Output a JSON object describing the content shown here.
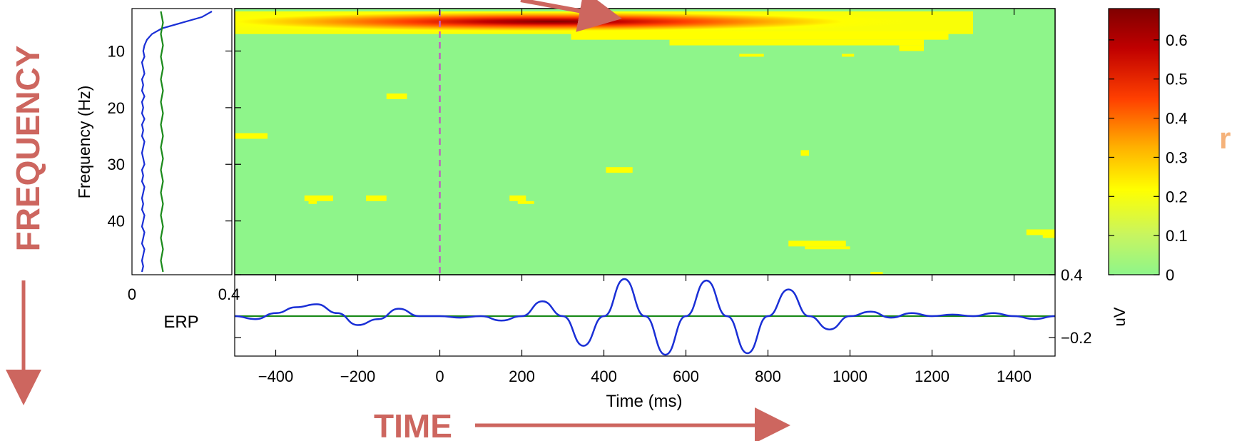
{
  "annotations": {
    "frequency": "FREQUENCY",
    "time": "TIME",
    "r": "r"
  },
  "colors": {
    "annotation": "#cd665f",
    "r_label": "#f5b27a",
    "baseline": "#8ef58a",
    "spectrum_line": "#1a2fd6",
    "erp_line": "#1a2fd6",
    "bootstrap_line": "#1a8a1a",
    "stim_marker": "#c060c0",
    "colormap": [
      "#8ef58a",
      "#c8f560",
      "#ffff00",
      "#ffb000",
      "#ff4000",
      "#c00000",
      "#800000"
    ]
  },
  "chart_data": [
    {
      "type": "heatmap",
      "name": "time-frequency",
      "ylabel": "Frequency (Hz)",
      "xlabel": "Time (ms)",
      "xlim": [
        -500,
        1500
      ],
      "ylim": [
        49.5,
        2.5
      ],
      "ytick_labels": [
        "10",
        "20",
        "30",
        "40"
      ],
      "ytick_values": [
        10,
        20,
        30,
        40
      ],
      "xtick_labels": [
        "-400",
        "-200",
        "0",
        "200",
        "400",
        "600",
        "800",
        "1000",
        "1200",
        "1400"
      ],
      "xtick_values": [
        -400,
        -200,
        0,
        200,
        400,
        600,
        800,
        1000,
        1200,
        1400
      ],
      "stimulus_onset_ms": 0,
      "main_band": {
        "freq_min": 3,
        "freq_max": 7,
        "time_start": -500,
        "time_end": 1300,
        "peak_time": 550,
        "peak_freq": 4.5,
        "peak_value": 0.68
      },
      "blobs": [
        {
          "t0": 320,
          "t1": 1240,
          "f0": 6.5,
          "f1": 8,
          "v": 0.15
        },
        {
          "t0": 560,
          "t1": 1180,
          "f0": 8,
          "f1": 9,
          "v": 0.12
        },
        {
          "t0": 1120,
          "t1": 1180,
          "f0": 9,
          "f1": 10,
          "v": 0.12
        },
        {
          "t0": 730,
          "t1": 790,
          "f0": 10.5,
          "f1": 11,
          "v": 0.12
        },
        {
          "t0": 980,
          "t1": 1010,
          "f0": 10.5,
          "f1": 11,
          "v": 0.12
        },
        {
          "t0": -130,
          "t1": -80,
          "f0": 17.5,
          "f1": 18.5,
          "v": 0.15
        },
        {
          "t0": -500,
          "t1": -420,
          "f0": 24.5,
          "f1": 25.5,
          "v": 0.15
        },
        {
          "t0": 405,
          "t1": 470,
          "f0": 30.5,
          "f1": 31.5,
          "v": 0.15
        },
        {
          "t0": 880,
          "t1": 900,
          "f0": 27.5,
          "f1": 28.5,
          "v": 0.15
        },
        {
          "t0": -330,
          "t1": -260,
          "f0": 35.5,
          "f1": 36.5,
          "v": 0.15
        },
        {
          "t0": -320,
          "t1": -300,
          "f0": 36.5,
          "f1": 37,
          "v": 0.15
        },
        {
          "t0": -180,
          "t1": -130,
          "f0": 35.5,
          "f1": 36.5,
          "v": 0.15
        },
        {
          "t0": 170,
          "t1": 210,
          "f0": 35.5,
          "f1": 36.5,
          "v": 0.15
        },
        {
          "t0": 190,
          "t1": 230,
          "f0": 36.5,
          "f1": 37,
          "v": 0.15
        },
        {
          "t0": 850,
          "t1": 990,
          "f0": 43.5,
          "f1": 44.5,
          "v": 0.15
        },
        {
          "t0": 890,
          "t1": 1000,
          "f0": 44.5,
          "f1": 45,
          "v": 0.12
        },
        {
          "t0": 1430,
          "t1": 1500,
          "f0": 41.5,
          "f1": 42.5,
          "v": 0.15
        },
        {
          "t0": 1470,
          "t1": 1500,
          "f0": 42.5,
          "f1": 43,
          "v": 0.12
        },
        {
          "t0": 1050,
          "t1": 1080,
          "f0": 49,
          "f1": 49.5,
          "v": 0.12
        }
      ]
    },
    {
      "type": "line",
      "name": "spectrum",
      "xlim": [
        0,
        0.4
      ],
      "xtick_labels": [
        "0",
        "0.4"
      ],
      "xtick_values": [
        0,
        0.4
      ],
      "series": [
        {
          "name": "",
          "x": [
            0.32,
            0.28,
            0.2,
            0.12,
            0.08,
            0.06,
            0.05,
            0.045,
            0.05,
            0.04,
            0.045,
            0.05,
            0.04,
            0.045,
            0.04,
            0.05,
            0.04,
            0.045,
            0.04,
            0.05,
            0.04,
            0.045,
            0.04,
            0.05,
            0.045,
            0.04,
            0.045,
            0.05,
            0.04,
            0.045,
            0.04,
            0.05,
            0.045,
            0.04,
            0.045,
            0.04,
            0.05,
            0.045,
            0.04,
            0.05,
            0.045,
            0.04,
            0.05,
            0.045,
            0.04,
            0.045,
            0.04
          ],
          "y": [
            3,
            4,
            5,
            6,
            7,
            8,
            9,
            10,
            11,
            12,
            13,
            14,
            15,
            16,
            17,
            18,
            19,
            20,
            21,
            22,
            23,
            24,
            25,
            26,
            27,
            28,
            29,
            30,
            31,
            32,
            33,
            34,
            35,
            36,
            37,
            38,
            39,
            40,
            41,
            42,
            43,
            44,
            45,
            46,
            47,
            48,
            49
          ]
        },
        {
          "name": "",
          "x": [
            0.12,
            0.12,
            0.12,
            0.12,
            0.12,
            0.12,
            0.12,
            0.12,
            0.12,
            0.12,
            0.12,
            0.12,
            0.12,
            0.12,
            0.12,
            0.12,
            0.12,
            0.12,
            0.12,
            0.12,
            0.12,
            0.12,
            0.12,
            0.12
          ],
          "y": [
            3,
            5,
            7,
            9,
            11,
            13,
            15,
            17,
            19,
            21,
            23,
            25,
            27,
            29,
            31,
            33,
            35,
            37,
            39,
            41,
            43,
            45,
            47,
            49
          ]
        }
      ]
    },
    {
      "type": "line",
      "name": "erp",
      "ylabel": "ERP",
      "unit": "uV",
      "xlim": [
        -500,
        1500
      ],
      "ylim": [
        -0.4,
        0.4
      ],
      "ytick_labels": [
        "0.4",
        "-0.2"
      ],
      "ytick_values": [
        0.4,
        -0.2
      ],
      "xtick_values": [
        -400,
        -200,
        0,
        200,
        400,
        600,
        800,
        1000,
        1200,
        1400
      ],
      "series": [
        {
          "name": "",
          "x": [
            -500,
            -450,
            -400,
            -350,
            -300,
            -250,
            -200,
            -150,
            -100,
            -50,
            0,
            50,
            100,
            150,
            200,
            250,
            300,
            350,
            400,
            450,
            500,
            550,
            600,
            650,
            700,
            750,
            800,
            850,
            900,
            950,
            1000,
            1050,
            1100,
            1150,
            1200,
            1250,
            1300,
            1350,
            1400,
            1450,
            1500
          ],
          "y": [
            0.0,
            -0.02,
            0.02,
            0.06,
            0.08,
            0.02,
            -0.06,
            -0.02,
            0.05,
            0.0,
            0.0,
            -0.01,
            0.0,
            -0.03,
            0.0,
            0.1,
            0.0,
            -0.2,
            0.0,
            0.25,
            0.0,
            -0.26,
            0.0,
            0.24,
            0.0,
            -0.25,
            0.0,
            0.18,
            0.0,
            -0.09,
            0.0,
            0.03,
            -0.01,
            0.02,
            0.0,
            0.01,
            0.0,
            0.02,
            0.0,
            -0.02,
            0.0
          ]
        },
        {
          "name": "",
          "x": [
            -500,
            1500
          ],
          "y": [
            0,
            0
          ]
        }
      ]
    },
    {
      "type": "heatmap",
      "name": "colorbar",
      "label": "r",
      "ylim": [
        0,
        0.68
      ],
      "tick_labels": [
        "0",
        "0.1",
        "0.2",
        "0.3",
        "0.4",
        "0.5",
        "0.6"
      ],
      "tick_values": [
        0,
        0.1,
        0.2,
        0.3,
        0.4,
        0.5,
        0.6
      ]
    }
  ]
}
